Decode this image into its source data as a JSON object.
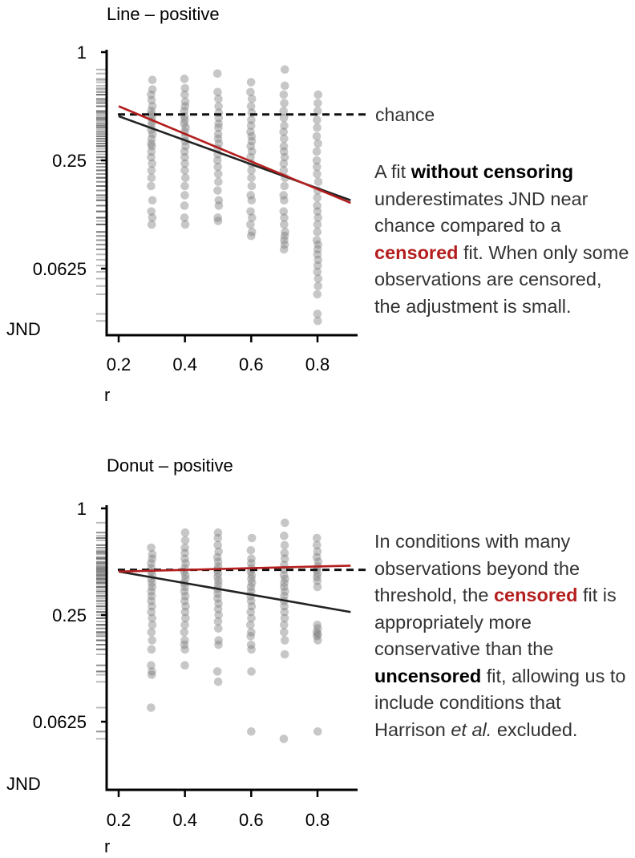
{
  "chart_data": [
    {
      "type": "scatter",
      "title": "Line – positive",
      "xlabel": "r",
      "ylabel": "JND",
      "x_ticks": [
        "0.2",
        "0.4",
        "0.6",
        "0.8"
      ],
      "y_ticks": [
        "1",
        "0.25",
        "0.0625"
      ],
      "y_scale": "log2",
      "xlim": [
        0.15,
        0.9
      ],
      "ylim": [
        0.025,
        1
      ],
      "chance_label": "chance",
      "chance_value": 0.45,
      "series": [
        {
          "x": 0.3,
          "y": [
            0.7,
            0.62,
            0.58,
            0.54,
            0.5,
            0.47,
            0.45,
            0.43,
            0.41,
            0.39,
            0.37,
            0.35,
            0.33,
            0.31,
            0.3,
            0.28,
            0.26,
            0.24,
            0.22,
            0.2,
            0.18,
            0.15,
            0.13,
            0.12,
            0.11
          ]
        },
        {
          "x": 0.4,
          "y": [
            0.71,
            0.63,
            0.58,
            0.53,
            0.5,
            0.47,
            0.44,
            0.42,
            0.4,
            0.38,
            0.36,
            0.34,
            0.32,
            0.3,
            0.28,
            0.26,
            0.24,
            0.22,
            0.2,
            0.18,
            0.16,
            0.14,
            0.12,
            0.11
          ]
        },
        {
          "x": 0.5,
          "y": [
            0.76,
            0.6,
            0.55,
            0.5,
            0.46,
            0.43,
            0.4,
            0.38,
            0.35,
            0.33,
            0.31,
            0.29,
            0.27,
            0.25,
            0.23,
            0.21,
            0.19,
            0.17,
            0.15,
            0.14,
            0.12,
            0.115
          ]
        },
        {
          "x": 0.6,
          "y": [
            0.68,
            0.6,
            0.55,
            0.5,
            0.46,
            0.42,
            0.39,
            0.36,
            0.34,
            0.32,
            0.3,
            0.28,
            0.26,
            0.24,
            0.22,
            0.2,
            0.18,
            0.16,
            0.15,
            0.13,
            0.12,
            0.11,
            0.1,
            0.095
          ]
        },
        {
          "x": 0.7,
          "y": [
            0.8,
            0.65,
            0.58,
            0.52,
            0.47,
            0.43,
            0.39,
            0.36,
            0.33,
            0.3,
            0.28,
            0.26,
            0.24,
            0.22,
            0.2,
            0.18,
            0.16,
            0.15,
            0.13,
            0.12,
            0.11,
            0.1,
            0.095,
            0.09,
            0.085,
            0.08
          ]
        },
        {
          "x": 0.8,
          "y": [
            0.58,
            0.52,
            0.47,
            0.42,
            0.38,
            0.34,
            0.31,
            0.28,
            0.25,
            0.23,
            0.21,
            0.19,
            0.17,
            0.155,
            0.14,
            0.13,
            0.12,
            0.11,
            0.1,
            0.09,
            0.085,
            0.08,
            0.075,
            0.07,
            0.065,
            0.06,
            0.055,
            0.05,
            0.045,
            0.035,
            0.032
          ]
        }
      ],
      "fit_censored": {
        "color": "#b41e1e",
        "x": [
          0.2,
          0.9
        ],
        "y": [
          0.5,
          0.145
        ]
      },
      "fit_uncensored": {
        "color": "#222222",
        "x": [
          0.2,
          0.9
        ],
        "y": [
          0.44,
          0.15
        ]
      }
    },
    {
      "type": "scatter",
      "title": "Donut – positive",
      "xlabel": "r",
      "ylabel": "JND",
      "x_ticks": [
        "0.2",
        "0.4",
        "0.6",
        "0.8"
      ],
      "y_ticks": [
        "1",
        "0.25",
        "0.0625"
      ],
      "y_scale": "log2",
      "xlim": [
        0.15,
        0.9
      ],
      "ylim": [
        0.025,
        1
      ],
      "chance_value": 0.45,
      "series": [
        {
          "x": 0.3,
          "y": [
            0.6,
            0.55,
            0.52,
            0.49,
            0.46,
            0.44,
            0.42,
            0.4,
            0.38,
            0.36,
            0.34,
            0.32,
            0.3,
            0.28,
            0.26,
            0.24,
            0.22,
            0.2,
            0.18,
            0.16,
            0.13,
            0.12,
            0.115,
            0.075
          ]
        },
        {
          "x": 0.4,
          "y": [
            0.73,
            0.66,
            0.6,
            0.56,
            0.52,
            0.49,
            0.46,
            0.44,
            0.42,
            0.4,
            0.38,
            0.36,
            0.34,
            0.32,
            0.3,
            0.28,
            0.26,
            0.24,
            0.22,
            0.2,
            0.18,
            0.17,
            0.16,
            0.13
          ]
        },
        {
          "x": 0.5,
          "y": [
            0.73,
            0.68,
            0.62,
            0.57,
            0.53,
            0.5,
            0.47,
            0.45,
            0.43,
            0.41,
            0.39,
            0.37,
            0.35,
            0.33,
            0.31,
            0.29,
            0.27,
            0.25,
            0.23,
            0.21,
            0.18,
            0.17,
            0.12,
            0.105
          ]
        },
        {
          "x": 0.6,
          "y": [
            0.68,
            0.58,
            0.52,
            0.49,
            0.46,
            0.44,
            0.42,
            0.4,
            0.38,
            0.36,
            0.34,
            0.32,
            0.3,
            0.28,
            0.26,
            0.24,
            0.22,
            0.2,
            0.19,
            0.17,
            0.16,
            0.12,
            0.055
          ]
        },
        {
          "x": 0.7,
          "y": [
            0.83,
            0.7,
            0.62,
            0.56,
            0.52,
            0.48,
            0.45,
            0.42,
            0.4,
            0.38,
            0.36,
            0.34,
            0.32,
            0.3,
            0.28,
            0.26,
            0.24,
            0.22,
            0.2,
            0.18,
            0.15,
            0.05
          ]
        },
        {
          "x": 0.8,
          "y": [
            0.68,
            0.62,
            0.57,
            0.53,
            0.5,
            0.47,
            0.45,
            0.43,
            0.41,
            0.39,
            0.36,
            0.22,
            0.21,
            0.2,
            0.195,
            0.19,
            0.18,
            0.055
          ]
        }
      ],
      "fit_censored": {
        "color": "#b41e1e",
        "x": [
          0.2,
          0.9
        ],
        "y": [
          0.44,
          0.475
        ]
      },
      "fit_uncensored": {
        "color": "#222222",
        "x": [
          0.2,
          0.9
        ],
        "y": [
          0.44,
          0.26
        ]
      }
    }
  ],
  "notes": {
    "top": {
      "p1": "A fit ",
      "b1": "without censoring",
      "p2": " underestimates JND near chance compared to a ",
      "r1": "censored",
      "p3": " fit. When only some observations are censored, the adjustment is small."
    },
    "bottom": {
      "p1": "In conditions with many observations beyond the threshold, the ",
      "r1": "censored",
      "p2": " fit is appropriately more conservative than the ",
      "b1": "uncensored",
      "p3": " fit, allowing us to include conditions that Harrison ",
      "i1": "et al.",
      "p4": " excluded."
    }
  },
  "colors": {
    "points": "#7a7a7a",
    "censored": "#b41e1e",
    "uncensored": "#222222",
    "chance": "#111111"
  }
}
